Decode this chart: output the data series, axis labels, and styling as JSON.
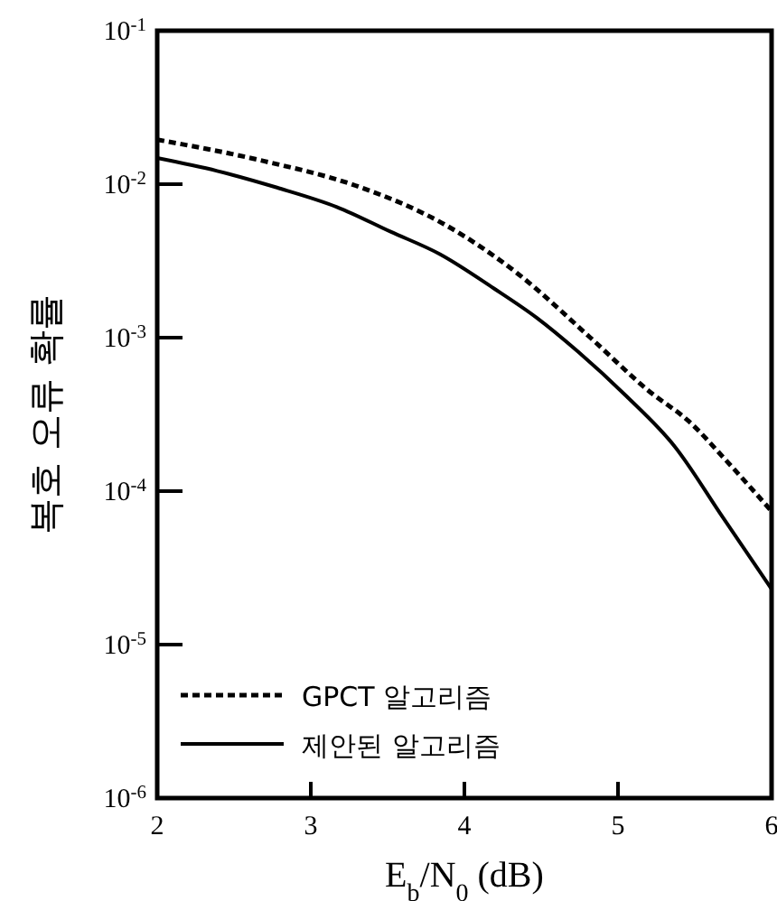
{
  "chart_data": {
    "type": "line",
    "xlabel": "E$_{b}$/N$_{0}$ (dB)",
    "ylabel": "복호 오류 확률",
    "log": "y",
    "grid": false,
    "legend": "bottom left",
    "marker": "none",
    "xlim": [
      2,
      6
    ],
    "xticks": [
      2,
      3,
      4,
      5,
      6
    ],
    "ylim": [
      1e-06,
      0.1
    ],
    "yticks": [
      {
        "value": 1e-06,
        "label": "10$^{-6}$"
      },
      {
        "value": 1e-05,
        "label": "10$^{-5}$"
      },
      {
        "value": 0.0001,
        "label": "10$^{-4}$"
      },
      {
        "value": 0.001,
        "label": "10$^{-3}$"
      },
      {
        "value": 0.01,
        "label": "10$^{-2}$"
      },
      {
        "value": 0.1,
        "label": "10$^{-1}$"
      }
    ],
    "series": [
      {
        "name": "GPCT 알고리즘",
        "color": "#000000",
        "line_style": "dashed",
        "x": [
          2,
          2.7,
          3.29,
          3.88,
          4.35,
          4.82,
          5.2,
          5.47,
          5.7,
          6
        ],
        "values": [
          0.0195,
          0.0141,
          0.0098,
          0.0054,
          0.0026,
          0.001,
          0.00045,
          0.00028,
          0.00016,
          7.4e-05
        ]
      },
      {
        "name": "제안된 알고리즘",
        "color": "#000000",
        "line_style": "solid",
        "x": [
          2,
          2.39,
          2.78,
          3.17,
          3.52,
          3.84,
          4.19,
          4.47,
          4.74,
          5.05,
          5.37,
          5.68,
          6
        ],
        "values": [
          0.0148,
          0.0122,
          0.0095,
          0.0071,
          0.0049,
          0.0035,
          0.0021,
          0.00135,
          0.00081,
          0.00042,
          0.000195,
          6.8e-05,
          2.3e-05
        ]
      }
    ]
  }
}
